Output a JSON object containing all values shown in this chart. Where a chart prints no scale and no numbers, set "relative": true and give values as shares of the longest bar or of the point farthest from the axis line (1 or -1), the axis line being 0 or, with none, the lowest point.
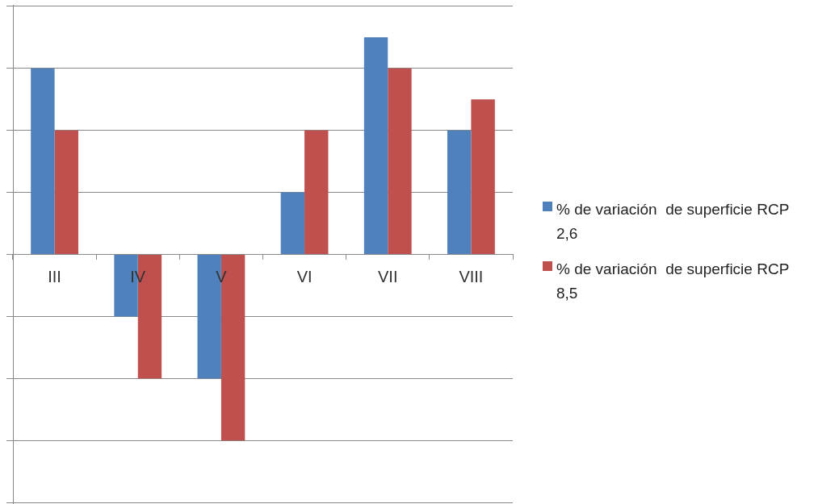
{
  "chart_data": {
    "type": "bar",
    "relative": true,
    "categories": [
      "III",
      "IV",
      "V",
      "VI",
      "VII",
      "VIII"
    ],
    "series": [
      {
        "name": "% de variación  de superficie RCP 2,6",
        "color": "#4f81bd",
        "values": [
          0.857,
          -0.286,
          -0.571,
          0.286,
          1,
          0.571
        ]
      },
      {
        "name": "% de variación  de superficie RCP 8,5",
        "color": "#c0504d",
        "values": [
          0.571,
          -0.571,
          -0.857,
          0.571,
          0.857,
          0.714
        ]
      }
    ],
    "grid": "y",
    "legend": "right"
  }
}
